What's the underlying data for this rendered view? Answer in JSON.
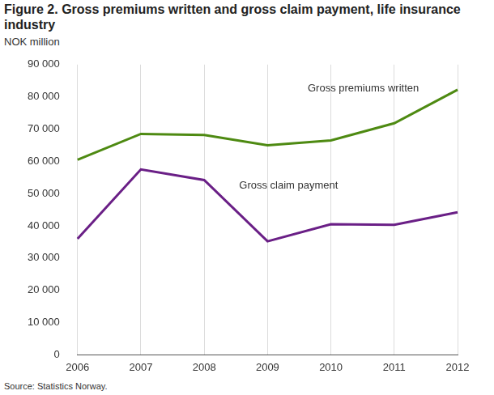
{
  "chart_data": {
    "type": "line",
    "title": "Figure 2. Gross premiums written and gross claim payment, life insurance industry",
    "ylabel": "NOK million",
    "source": "Source: Statistics Norway.",
    "categories": [
      "2006",
      "2007",
      "2008",
      "2009",
      "2010",
      "2011",
      "2012"
    ],
    "series": [
      {
        "name": "Gross premiums written",
        "color": "#4e8a12",
        "values": [
          60500,
          68500,
          68200,
          65000,
          66500,
          71800,
          82200
        ]
      },
      {
        "name": "Gross claim payment",
        "color": "#6a1f86",
        "values": [
          36000,
          57500,
          54200,
          35200,
          40500,
          40300,
          44200
        ]
      }
    ],
    "ylim": [
      0,
      90000
    ],
    "yticks": [
      0,
      {
        "value": 10000,
        "label": "10 000"
      },
      {
        "value": 20000,
        "label": "20 000"
      },
      {
        "value": 30000,
        "label": "30 000"
      },
      {
        "value": 40000,
        "label": "40 000"
      },
      {
        "value": 50000,
        "label": "50 000"
      },
      {
        "value": 60000,
        "label": "60 000"
      },
      {
        "value": 70000,
        "label": "70 000"
      },
      {
        "value": 80000,
        "label": "80 000"
      },
      {
        "value": 90000,
        "label": "90 000"
      }
    ],
    "grid": true
  }
}
